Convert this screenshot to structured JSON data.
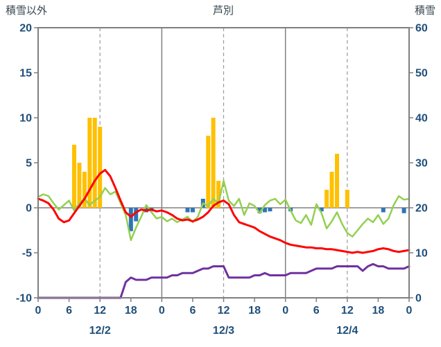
{
  "header": {
    "left_label": "積雪以外",
    "title": "芦別",
    "right_label": "積雪"
  },
  "colors": {
    "axis_text": "#1f4e79",
    "header_text": "#37474f",
    "border": "#7f7f7f",
    "grid_dashed": "#9a9a9a",
    "grid_solid": "#808080",
    "orange_bar": "#ffc000",
    "blue_bar": "#2e75b6",
    "red_line": "#ff0000",
    "green_line": "#92d050",
    "purple_line": "#7030a0"
  },
  "chart_data": {
    "type": "line",
    "title": "芦別",
    "left_axis": {
      "label": "積雪以外",
      "min": -10,
      "max": 20,
      "ticks": [
        20,
        15,
        10,
        5,
        0,
        -5,
        -10
      ]
    },
    "right_axis": {
      "label": "積雪",
      "min": 0,
      "max": 60,
      "ticks": [
        60,
        50,
        40,
        30,
        20,
        10,
        0
      ]
    },
    "x_axis": {
      "hours_total": 72,
      "tick_interval": 6,
      "tick_labels": [
        "0",
        "6",
        "12",
        "18",
        "0",
        "6",
        "12",
        "18",
        "0",
        "6",
        "12",
        "18",
        "0"
      ],
      "date_labels": [
        {
          "label": "12/2",
          "hour": 12
        },
        {
          "label": "12/3",
          "hour": 36
        },
        {
          "label": "12/4",
          "hour": 60
        }
      ]
    },
    "grid": {
      "dashed_hours": [
        12,
        36,
        60
      ],
      "solid_hours": [
        24,
        48
      ],
      "zero_line": true
    },
    "series": [
      {
        "name": "orange-bars",
        "kind": "bar",
        "axis": "left",
        "color": "#ffc000",
        "points": [
          [
            7,
            7
          ],
          [
            8,
            5
          ],
          [
            9,
            4
          ],
          [
            10,
            10
          ],
          [
            11,
            10
          ],
          [
            12,
            9
          ],
          [
            33,
            8
          ],
          [
            34,
            10
          ],
          [
            35,
            3
          ],
          [
            56,
            2
          ],
          [
            57,
            4
          ],
          [
            58,
            6
          ],
          [
            60,
            2
          ]
        ]
      },
      {
        "name": "blue-bars",
        "kind": "bar",
        "axis": "left",
        "color": "#2e75b6",
        "points": [
          [
            18,
            -2.6
          ],
          [
            19,
            -1.5
          ],
          [
            21,
            -0.5
          ],
          [
            22,
            -0.4
          ],
          [
            29,
            -0.5
          ],
          [
            30,
            -0.5
          ],
          [
            32,
            1.0
          ],
          [
            43,
            -0.6
          ],
          [
            44,
            -0.5
          ],
          [
            45,
            -0.4
          ],
          [
            49,
            -0.4
          ],
          [
            55,
            -0.4
          ],
          [
            67,
            -0.5
          ],
          [
            71,
            -0.6
          ]
        ]
      },
      {
        "name": "green-line",
        "kind": "line",
        "axis": "left",
        "color": "#92d050",
        "width": 2.5,
        "values": [
          1.2,
          1.5,
          1.3,
          0.5,
          -0.2,
          0.3,
          0.8,
          -0.3,
          0.5,
          1.0,
          0.3,
          0.8,
          1.2,
          2.2,
          1.5,
          1.8,
          0.5,
          -0.8,
          -3.6,
          -2.2,
          -1.0,
          0.3,
          -0.5,
          -1.2,
          -1.0,
          -1.5,
          -1.2,
          -1.6,
          -1.3,
          -1.0,
          -1.6,
          -1.0,
          0.5,
          0.2,
          1.0,
          0.5,
          3.0,
          0.8,
          0.2,
          1.0,
          -0.8,
          0.5,
          0.2,
          -0.6,
          0.3,
          0.8,
          1.0,
          0.4,
          0.9,
          -0.3,
          -1.4,
          -1.7,
          -0.8,
          -1.9,
          0.4,
          -0.6,
          -2.3,
          -1.5,
          -0.5,
          -1.8,
          -2.8,
          -3.2,
          -2.5,
          -1.8,
          -1.2,
          -1.6,
          -0.8,
          -1.8,
          -1.2,
          0.3,
          1.3,
          0.9,
          1.0
        ]
      },
      {
        "name": "red-line",
        "kind": "line",
        "axis": "left",
        "color": "#ff0000",
        "width": 3,
        "values": [
          1.0,
          0.8,
          0.5,
          -0.2,
          -1.2,
          -1.6,
          -1.4,
          -0.6,
          0.2,
          1.0,
          2.0,
          3.0,
          3.8,
          4.2,
          3.5,
          2.2,
          0.8,
          -0.5,
          -1.0,
          -0.5,
          -0.2,
          -0.3,
          -0.2,
          -0.4,
          -0.3,
          -0.5,
          -0.8,
          -1.2,
          -1.4,
          -1.3,
          -1.5,
          -1.3,
          -1.0,
          -0.5,
          0.2,
          0.6,
          0.8,
          0.4,
          -0.8,
          -1.6,
          -1.8,
          -2.0,
          -2.2,
          -2.6,
          -2.9,
          -3.2,
          -3.4,
          -3.6,
          -3.9,
          -4.1,
          -4.2,
          -4.3,
          -4.4,
          -4.4,
          -4.5,
          -4.5,
          -4.6,
          -4.6,
          -4.7,
          -4.8,
          -4.9,
          -5.0,
          -4.9,
          -5.0,
          -4.9,
          -4.8,
          -4.6,
          -4.5,
          -4.6,
          -4.8,
          -4.9,
          -4.8,
          -4.7
        ]
      },
      {
        "name": "purple-line",
        "kind": "line",
        "axis": "right",
        "color": "#7030a0",
        "width": 3,
        "values": [
          0,
          0,
          0,
          0,
          0,
          0,
          0,
          0,
          0,
          0,
          0,
          0,
          0,
          0,
          0,
          0,
          0,
          3.5,
          4.5,
          4,
          4,
          4,
          4.5,
          4.5,
          4.5,
          4.5,
          5,
          5,
          5.5,
          5.5,
          5.5,
          6,
          6.5,
          6.5,
          7,
          7,
          7,
          4.5,
          4.5,
          4.5,
          4.5,
          4.5,
          5,
          5,
          5.5,
          5,
          5,
          5,
          5,
          5.5,
          5.5,
          5.5,
          5.5,
          6,
          6.5,
          6.5,
          6.5,
          6.5,
          7,
          7,
          7,
          7,
          7,
          6,
          7,
          7.5,
          7,
          7,
          6.5,
          6.5,
          6.5,
          6.5,
          7
        ]
      }
    ]
  }
}
